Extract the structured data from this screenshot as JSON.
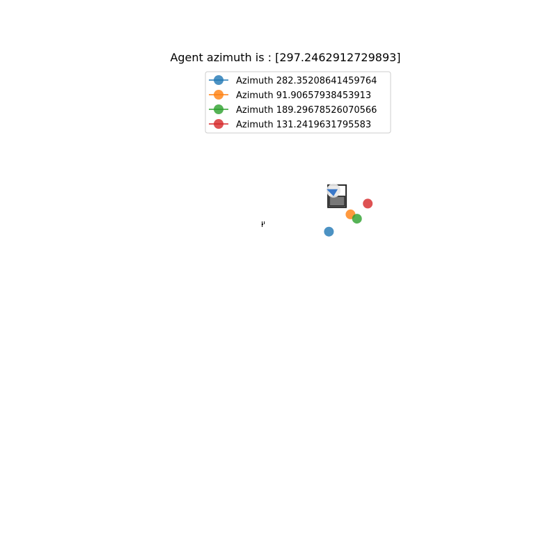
{
  "chart_data": {
    "type": "scatter",
    "title": "Agent azimuth is : [297.2462912729893]",
    "xlabel": "",
    "ylabel": "",
    "grid": false,
    "axes_visible": false,
    "legend_position": "top-center",
    "xlim": [
      -1,
      1
    ],
    "ylim": [
      -1,
      1
    ],
    "agent": {
      "x": 0.0,
      "y": 0.0,
      "icon": "person-icon"
    },
    "object": {
      "x": 0.31,
      "y": 0.22,
      "icon": "robot-vacuum-icon"
    },
    "series": [
      {
        "name": "Azimuth 282.35208641459764",
        "color": "#1f77b4",
        "x": 0.24,
        "y": 0.13
      },
      {
        "name": "Azimuth 91.90657938453913",
        "color": "#ff7f0e",
        "x": 0.34,
        "y": 0.21
      },
      {
        "name": "Azimuth 189.29678526070566",
        "color": "#2ca02c",
        "x": 0.37,
        "y": 0.19
      },
      {
        "name": "Azimuth 131.2419631795583",
        "color": "#d62728",
        "x": 0.42,
        "y": 0.26
      }
    ]
  }
}
